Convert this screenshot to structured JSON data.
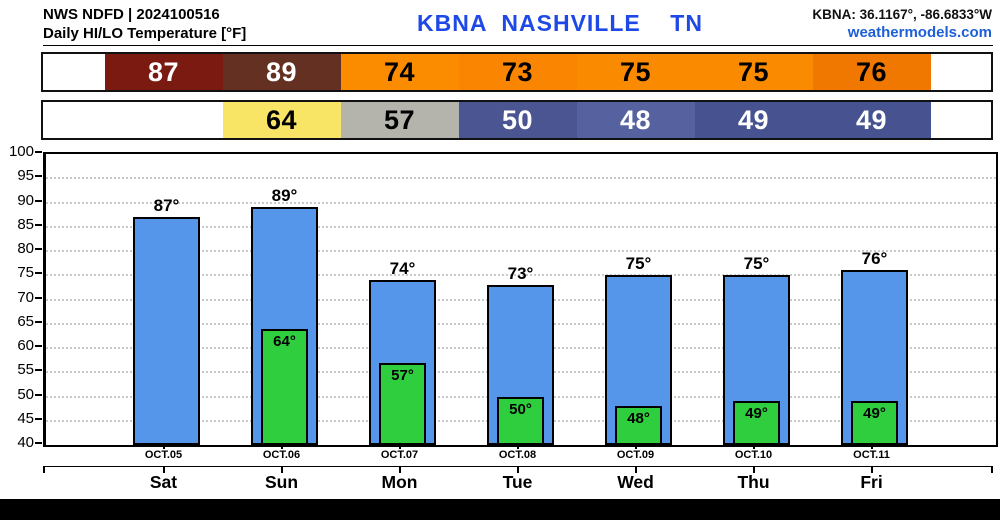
{
  "header": {
    "source_line": "NWS NDFD | 2024100516",
    "product_line": "Daily HI/LO Temperature [°F]",
    "station_title": "KBNA  NASHVILLE    TN",
    "station_title_color": "#1e49e6",
    "coords": "KBNA: 36.1167°, -86.6833°W",
    "site": "weathermodels.com",
    "site_color": "#1d5fd6"
  },
  "summary_rows": {
    "hi_cells": [
      {
        "label": "87",
        "bg": "#7b1a10",
        "fg": "#ffffff"
      },
      {
        "label": "89",
        "bg": "#633021",
        "fg": "#ffffff"
      },
      {
        "label": "74",
        "bg": "#fb8c00",
        "fg": "#000000"
      },
      {
        "label": "73",
        "bg": "#f98500",
        "fg": "#000000"
      },
      {
        "label": "75",
        "bg": "#fa8b00",
        "fg": "#000000"
      },
      {
        "label": "75",
        "bg": "#fa8b00",
        "fg": "#000000"
      },
      {
        "label": "76",
        "bg": "#f07800",
        "fg": "#000000"
      }
    ],
    "lo_cells": [
      {
        "label": "",
        "bg": null,
        "fg": null
      },
      {
        "label": "64",
        "bg": "#f8e566",
        "fg": "#000000"
      },
      {
        "label": "57",
        "bg": "#b4b4ac",
        "fg": "#000000"
      },
      {
        "label": "50",
        "bg": "#4a5591",
        "fg": "#ffffff"
      },
      {
        "label": "48",
        "bg": "#56629f",
        "fg": "#ffffff"
      },
      {
        "label": "49",
        "bg": "#475390",
        "fg": "#ffffff"
      },
      {
        "label": "49",
        "bg": "#475390",
        "fg": "#ffffff"
      }
    ]
  },
  "chart_data": {
    "type": "bar",
    "title": "Daily HI/LO Temperature [°F]",
    "categories": [
      "OCT.05",
      "OCT.06",
      "OCT.07",
      "OCT.08",
      "OCT.09",
      "OCT.10",
      "OCT.11"
    ],
    "day_labels": [
      "Sat",
      "Sun",
      "Mon",
      "Tue",
      "Wed",
      "Thu",
      "Fri"
    ],
    "series": [
      {
        "name": "HI",
        "values": [
          87,
          89,
          74,
          73,
          75,
          75,
          76
        ],
        "color": "#5596ea"
      },
      {
        "name": "LO",
        "values": [
          null,
          64,
          57,
          50,
          48,
          49,
          49
        ],
        "color": "#2fce3e"
      }
    ],
    "xlabel": "",
    "ylabel": "",
    "ylim": [
      40,
      100
    ],
    "ytick_step": 5,
    "grid": "dotted",
    "value_suffix": "°",
    "legend": "none"
  }
}
